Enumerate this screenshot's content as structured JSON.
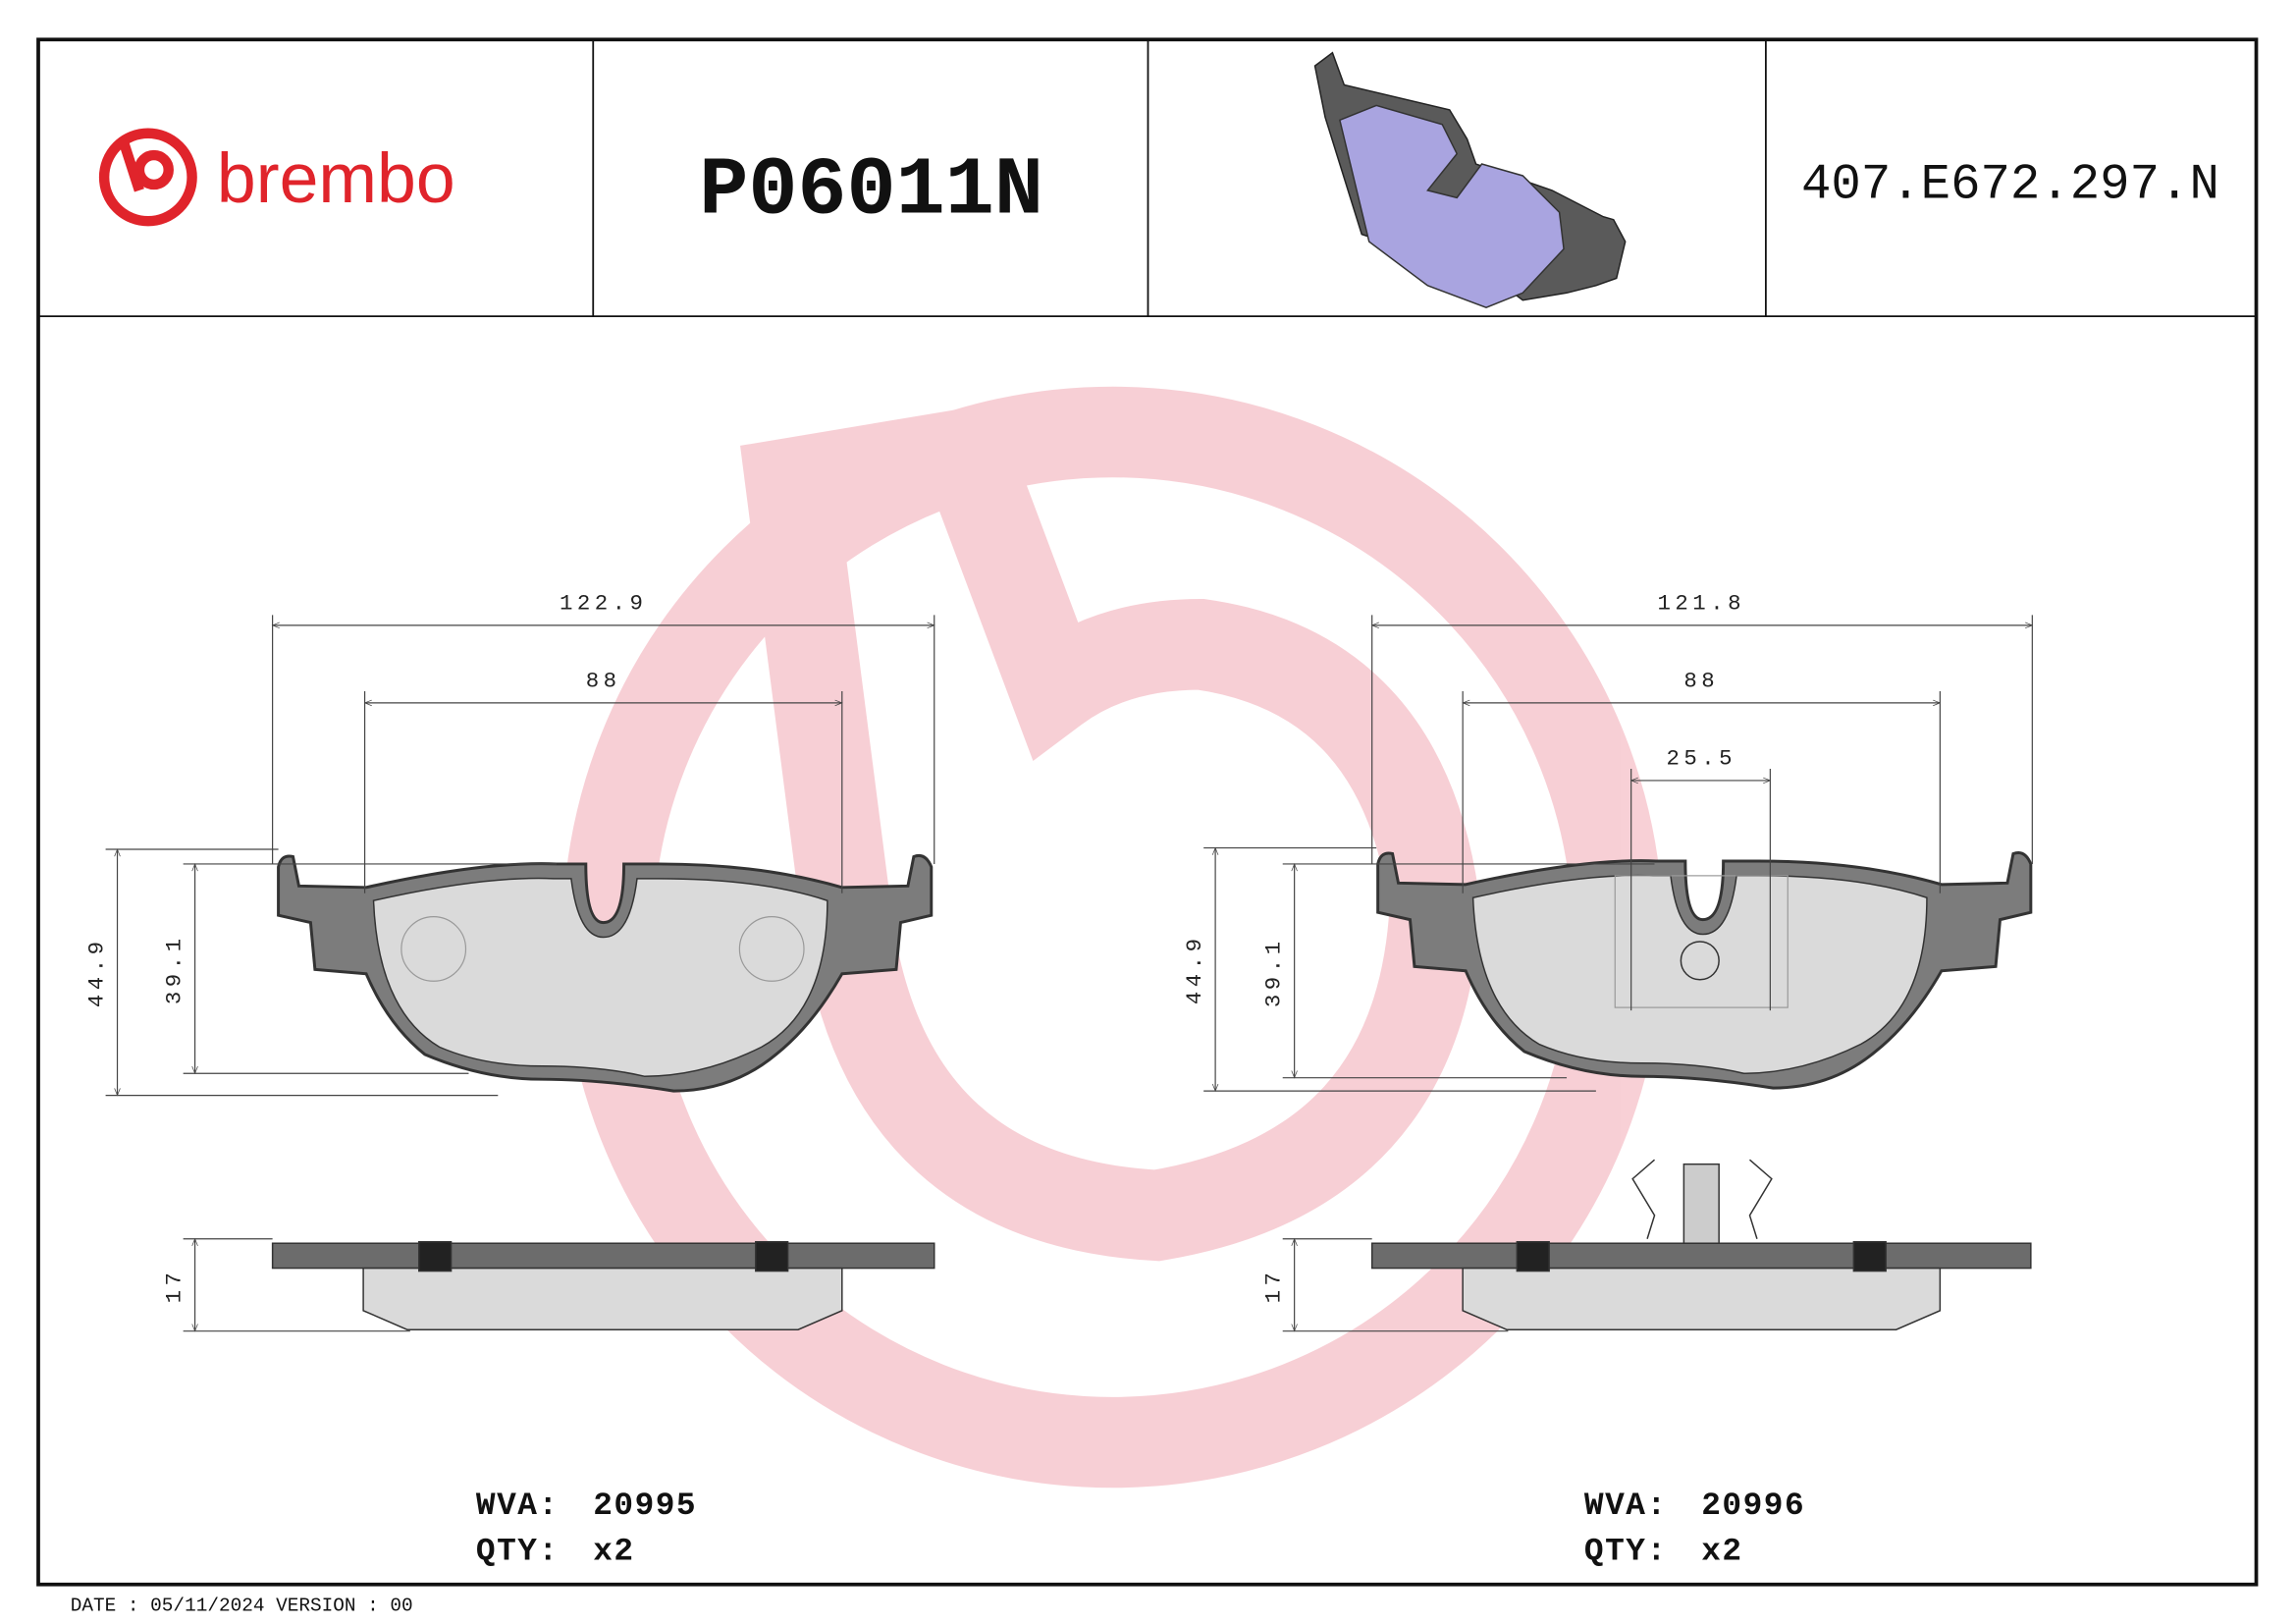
{
  "header": {
    "logo": "brembo",
    "part_number": "P06011N",
    "reference": "407.E672.297.N"
  },
  "left": {
    "dims": {
      "width_total": "122.9",
      "width_inner": "88",
      "height_total": "44.9",
      "height_pad": "39.1",
      "thickness": "17"
    },
    "wva_label": "WVA:",
    "wva": "20995",
    "qty_label": "QTY:",
    "qty": "x2"
  },
  "right": {
    "dims": {
      "width_total": "121.8",
      "width_inner": "88",
      "clip_width": "25.5",
      "height_total": "44.9",
      "height_pad": "39.1",
      "thickness": "17"
    },
    "wva_label": "WVA:",
    "wva": "20996",
    "qty_label": "QTY:",
    "qty": "x2"
  },
  "footer": "DATE : 05/11/2024 VERSION : 00"
}
